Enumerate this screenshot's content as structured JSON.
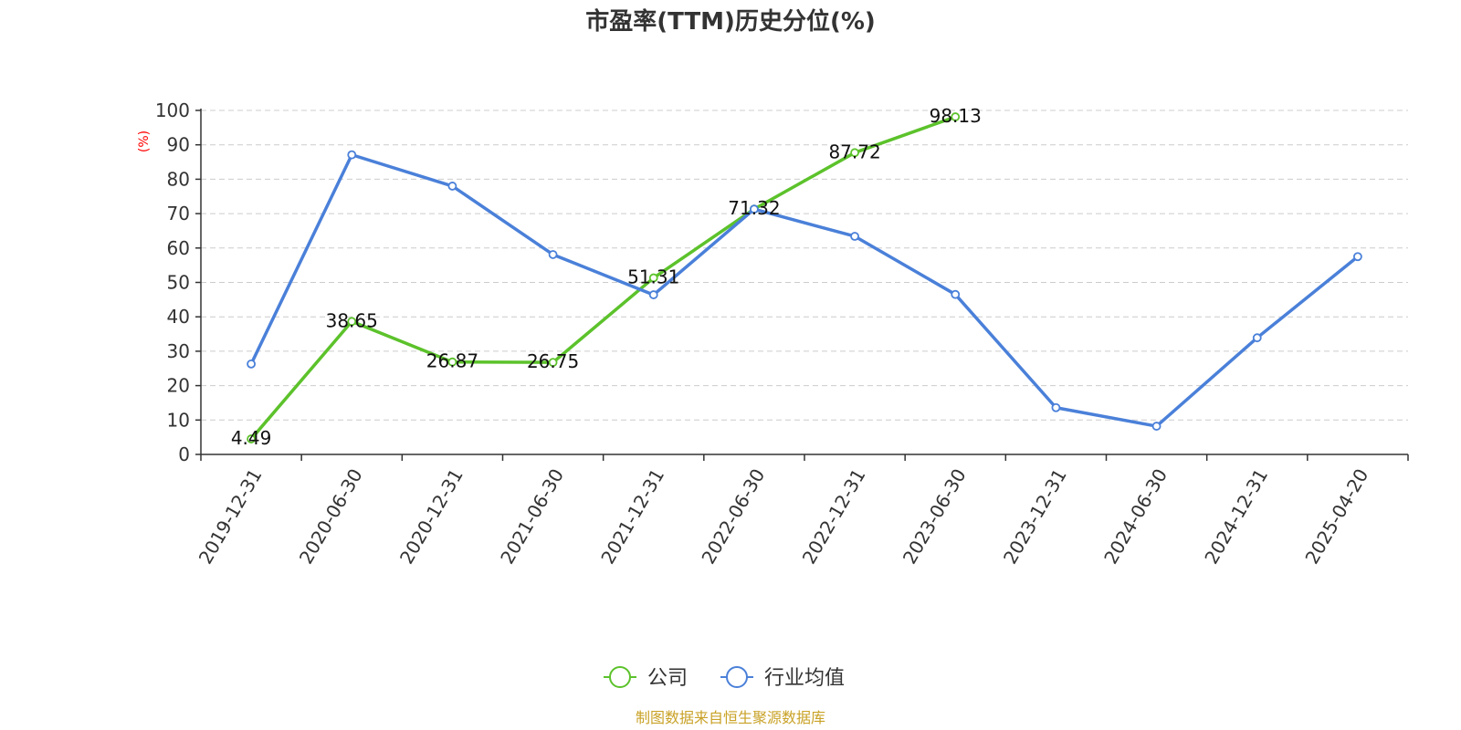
{
  "chart_data": {
    "type": "line",
    "title": "市盈率(TTM)历史分位(%)",
    "ylabel": "(%)",
    "xlabel": "",
    "ylim": [
      0,
      100
    ],
    "yticks": [
      0,
      10,
      20,
      30,
      40,
      50,
      60,
      70,
      80,
      90,
      100
    ],
    "grid": true,
    "legend_position": "bottom-center",
    "categories": [
      "2019-12-31",
      "2020-06-30",
      "2020-12-31",
      "2021-06-30",
      "2021-12-31",
      "2022-06-30",
      "2022-12-31",
      "2023-06-30",
      "2023-12-31",
      "2024-06-30",
      "2024-12-31",
      "2025-04-20"
    ],
    "series": [
      {
        "name": "公司",
        "color": "#5cc22b",
        "values": [
          4.49,
          38.65,
          26.87,
          26.75,
          51.31,
          71.32,
          87.72,
          98.13,
          null,
          null,
          null,
          null
        ],
        "labels": [
          "4.49",
          "38.65",
          "26.87",
          "26.75",
          "51.31",
          "71.32",
          "87.72",
          "98.13",
          null,
          null,
          null,
          null
        ]
      },
      {
        "name": "行业均值",
        "color": "#4a80d9",
        "values": [
          26.3,
          87.1,
          78.0,
          58.1,
          46.4,
          71.3,
          63.4,
          46.5,
          13.6,
          8.2,
          33.9,
          57.5
        ]
      }
    ],
    "source": "制图数据来自恒生聚源数据库"
  }
}
